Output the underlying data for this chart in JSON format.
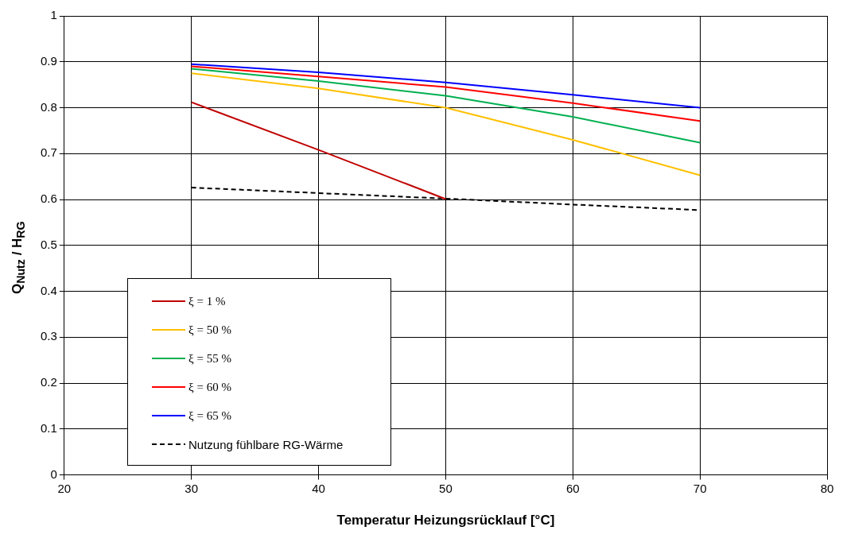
{
  "chart_data": {
    "type": "line",
    "xlabel": "Temperatur Heizungsrücklauf [°C]",
    "ylabel": "Q$_{Nutz}$ / H$_{RG}$",
    "x": [
      30,
      40,
      50,
      60,
      70
    ],
    "xlim": [
      20,
      80
    ],
    "xticks": [
      20,
      30,
      40,
      50,
      60,
      70,
      80
    ],
    "ylim": [
      0,
      1
    ],
    "yticks": [
      0,
      0.1,
      0.2,
      0.3,
      0.4,
      0.5,
      0.6,
      0.7,
      0.8,
      0.9,
      1
    ],
    "grid": true,
    "legend": "bottom left",
    "marker": "none",
    "series": [
      {
        "name": "ξ = 1 %",
        "color": "#c00000",
        "values": [
          0.812,
          0.708,
          0.601,
          null,
          null
        ]
      },
      {
        "name": "ξ = 50 %",
        "color": "#ffc000",
        "values": [
          0.875,
          0.842,
          0.8,
          0.73,
          0.653
        ]
      },
      {
        "name": "ξ = 55 %",
        "color": "#00b050",
        "values": [
          0.885,
          0.858,
          0.826,
          0.78,
          0.724
        ]
      },
      {
        "name": "ξ = 60 %",
        "color": "#ff0000",
        "values": [
          0.89,
          0.868,
          0.845,
          0.81,
          0.771
        ]
      },
      {
        "name": "ξ = 65 %",
        "color": "#0000ff",
        "values": [
          0.895,
          0.877,
          0.855,
          0.828,
          0.8
        ]
      },
      {
        "name": "Nutzung fühlbare RG-Wärme",
        "color": "#000000",
        "line_style": "dashed",
        "values": [
          0.626,
          0.614,
          0.602,
          0.589,
          0.577
        ]
      }
    ]
  }
}
